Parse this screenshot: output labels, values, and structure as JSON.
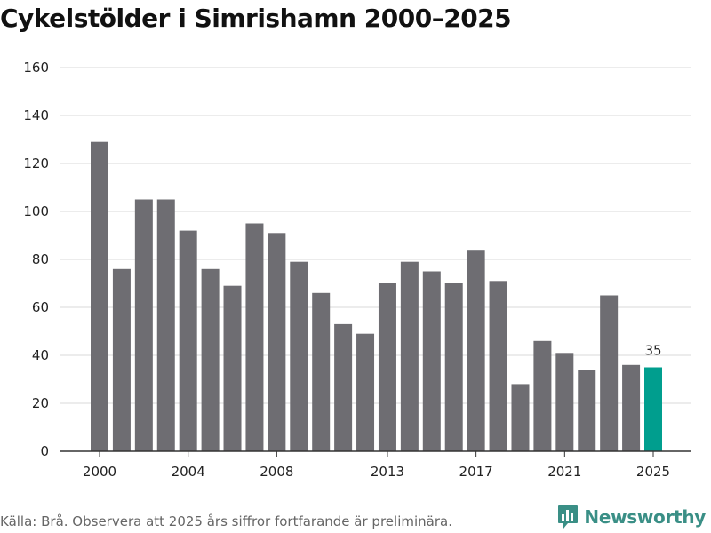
{
  "title": "Cykelstölder i Simrishamn 2000–2025",
  "footer": {
    "source": "Källa: Brå. Observera att 2025 års siffror fortfarande är preliminära."
  },
  "brand": {
    "name": "Newsworthy",
    "color": "#3a8f86",
    "icon": "bar-chart-badge-icon"
  },
  "colors": {
    "bar": "#6e6d72",
    "highlight": "#009e8e",
    "grid": "#d9d9d9",
    "axis": "#333333"
  },
  "chart_data": {
    "type": "bar",
    "title": "Cykelstölder i Simrishamn 2000–2025",
    "xlabel": "",
    "ylabel": "",
    "ylim": [
      0,
      160
    ],
    "yticks": [
      0,
      20,
      40,
      60,
      80,
      100,
      120,
      140,
      160
    ],
    "grid": true,
    "categories": [
      2000,
      2001,
      2002,
      2003,
      2004,
      2005,
      2006,
      2007,
      2008,
      2009,
      2010,
      2011,
      2012,
      2013,
      2014,
      2015,
      2016,
      2017,
      2018,
      2019,
      2020,
      2021,
      2022,
      2023,
      2024,
      2025
    ],
    "values": [
      129,
      76,
      105,
      105,
      92,
      76,
      69,
      95,
      91,
      79,
      66,
      53,
      49,
      70,
      79,
      75,
      70,
      84,
      71,
      28,
      46,
      41,
      34,
      65,
      36,
      35
    ],
    "xtick_labels": [
      "2000",
      "2004",
      "2008",
      "2013",
      "2017",
      "2021",
      "2025"
    ],
    "highlight": {
      "category": 2025,
      "label": "35"
    }
  }
}
